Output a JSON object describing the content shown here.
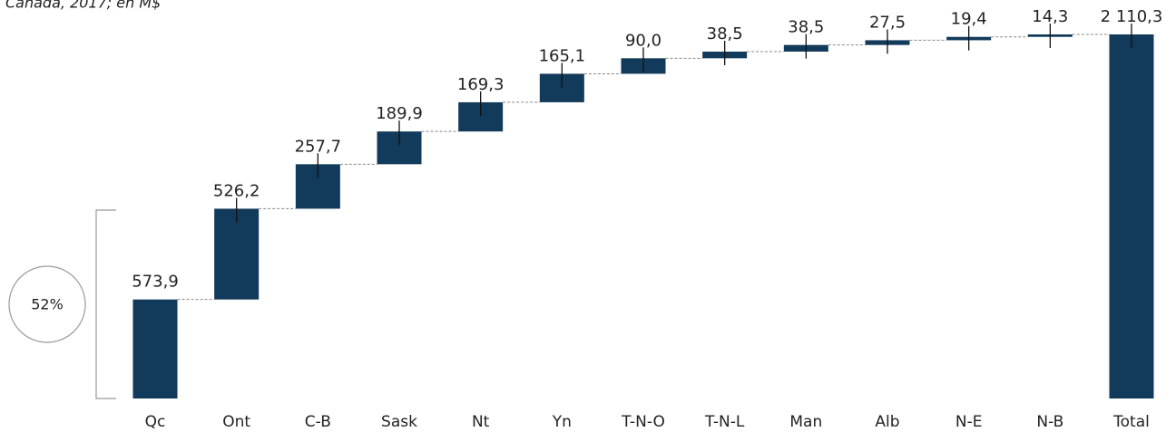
{
  "chart_data": {
    "type": "waterfall",
    "subtitle": "Canada, 2017; en M$",
    "categories": [
      "Qc",
      "Ont",
      "C-B",
      "Sask",
      "Nt",
      "Yn",
      "T-N-O",
      "T-N-L",
      "Man",
      "Alb",
      "N-E",
      "N-B",
      "Total"
    ],
    "values": [
      573.9,
      526.2,
      257.7,
      189.9,
      169.3,
      165.1,
      90.0,
      38.5,
      38.5,
      27.5,
      19.4,
      14.3,
      2110.3
    ],
    "value_labels": [
      "573,9",
      "526,2",
      "257,7",
      "189,9",
      "169,3",
      "165,1",
      "90,0",
      "38,5",
      "38,5",
      "27,5",
      "19,4",
      "14,3",
      "2 110,3"
    ],
    "color": "#123a5a",
    "annotation": "52%"
  }
}
